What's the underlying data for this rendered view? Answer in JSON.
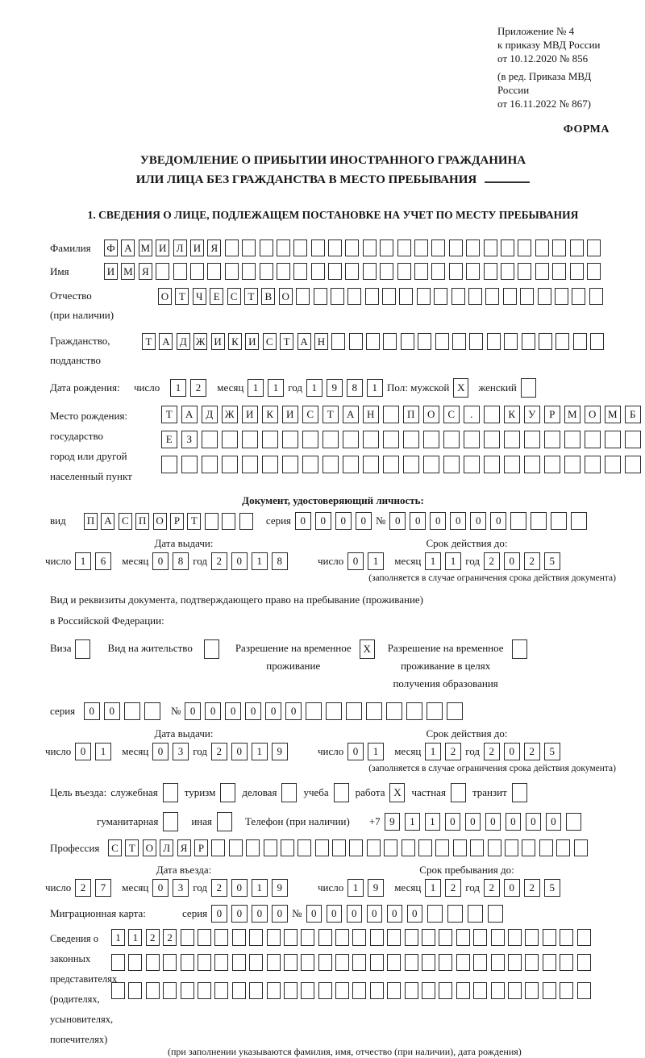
{
  "meta": {
    "appendix": [
      "Приложение № 4",
      "к приказу МВД России",
      "от 10.12.2020 № 856"
    ],
    "amendment": [
      "(в ред. Приказа МВД России",
      "от 16.11.2022 № 867)"
    ],
    "forma": "ФОРМА"
  },
  "title": {
    "line1": "УВЕДОМЛЕНИЕ О ПРИБЫТИИ ИНОСТРАННОГО ГРАЖДАНИНА",
    "line2": "ИЛИ ЛИЦА БЕЗ ГРАЖДАНСТВА В МЕСТО ПРЕБЫВАНИЯ"
  },
  "section1_title": "1. СВЕДЕНИЯ О ЛИЦЕ, ПОДЛЕЖАЩЕМ ПОСТАНОВКЕ НА УЧЕТ ПО МЕСТУ ПРЕБЫВАНИЯ",
  "date_labels": {
    "day": "число",
    "month": "месяц",
    "year": "год"
  },
  "surname": {
    "label": "Фамилия",
    "value": "ФАМИЛИЯ",
    "len": 29
  },
  "name": {
    "label": "Имя",
    "value": "ИМЯ",
    "len": 29
  },
  "patronymic": {
    "label1": "Отчество",
    "label2": "(при наличии)",
    "value": "ОТЧЕСТВО",
    "len": 26
  },
  "citizenship": {
    "label1": "Гражданство,",
    "label2": "подданство",
    "value": "ТАДЖИКИСТАН",
    "len": 27
  },
  "birthdate": {
    "label": "Дата рождения:",
    "day": {
      "value": "12",
      "len": 2
    },
    "month": {
      "value": "11",
      "len": 2
    },
    "year": {
      "value": "1981",
      "len": 4
    },
    "sex_label": "Пол: мужской",
    "male_mark": "X",
    "female_label": "женский",
    "female_mark": ""
  },
  "birthplace": {
    "label1": "Место рождения:",
    "label2": "государство",
    "label3": "город или другой",
    "label4": "населенный пункт",
    "row1": {
      "value": "ТАДЖИКИСТАН ПОС. КУРМОМБ",
      "len": 24
    },
    "row2": {
      "value": "ЕЗ",
      "len": 24
    },
    "row3": {
      "value": "",
      "len": 24
    }
  },
  "identity_doc": {
    "heading": "Документ, удостоверяющий личность:",
    "type_label": "вид",
    "type": {
      "value": "ПАСПОРТ",
      "len": 10
    },
    "series_label": "серия",
    "series": {
      "value": "0000",
      "len": 4
    },
    "number_label": "№",
    "number": {
      "value": "000000",
      "len": 10
    },
    "issue_label": "Дата выдачи:",
    "valid_label": "Срок действия до:",
    "issue": {
      "day": {
        "value": "16",
        "len": 2
      },
      "month": {
        "value": "08",
        "len": 2
      },
      "year": {
        "value": "2018",
        "len": 4
      }
    },
    "valid": {
      "day": {
        "value": "01",
        "len": 2
      },
      "month": {
        "value": "11",
        "len": 2
      },
      "year": {
        "value": "2025",
        "len": 4
      }
    },
    "footnote": "(заполняется в случае ограничения срока действия документа)"
  },
  "residence_doc": {
    "line1": "Вид и реквизиты документа, подтверждающего право на пребывание (проживание)",
    "line2": "в Российской Федерации:",
    "options": [
      {
        "lines": [
          "Виза"
        ],
        "mark": ""
      },
      {
        "lines": [
          "Вид на жительство"
        ],
        "mark": ""
      },
      {
        "lines": [
          "Разрешение на временное",
          "проживание"
        ],
        "mark": "X"
      },
      {
        "lines": [
          "Разрешение на временное",
          "проживание в целях",
          "получения образования"
        ],
        "mark": ""
      }
    ],
    "series_label": "серия",
    "series": {
      "value": "00",
      "len": 4
    },
    "number_label": "№",
    "number": {
      "value": "000000",
      "len": 14
    },
    "issue_label": "Дата выдачи:",
    "valid_label": "Срок действия до:",
    "issue": {
      "day": {
        "value": "01",
        "len": 2
      },
      "month": {
        "value": "03",
        "len": 2
      },
      "year": {
        "value": "2019",
        "len": 4
      }
    },
    "valid": {
      "day": {
        "value": "01",
        "len": 2
      },
      "month": {
        "value": "12",
        "len": 2
      },
      "year": {
        "value": "2025",
        "len": 4
      }
    },
    "footnote": "(заполняется в случае ограничения срока действия документа)"
  },
  "purpose": {
    "label": "Цель въезда:",
    "options": [
      {
        "label": "служебная",
        "mark": ""
      },
      {
        "label": "туризм",
        "mark": ""
      },
      {
        "label": "деловая",
        "mark": ""
      },
      {
        "label": "учеба",
        "mark": ""
      },
      {
        "label": "работа",
        "mark": "X"
      },
      {
        "label": "частная",
        "mark": ""
      },
      {
        "label": "транзит",
        "mark": ""
      },
      {
        "label": "гуманитарная",
        "mark": ""
      },
      {
        "label": "иная",
        "mark": ""
      }
    ],
    "phone_label": "Телефон (при наличии)",
    "phone_prefix": "+7",
    "phone": {
      "value": "911000000",
      "len": 10
    }
  },
  "profession": {
    "label": "Профессия",
    "value": "СТОЛЯР",
    "len": 28
  },
  "entry": {
    "entry_label": "Дата въезда:",
    "stay_label": "Срок пребывания до:",
    "entry_date": {
      "day": {
        "value": "27",
        "len": 2
      },
      "month": {
        "value": "03",
        "len": 2
      },
      "year": {
        "value": "2019",
        "len": 4
      }
    },
    "stay_date": {
      "day": {
        "value": "19",
        "len": 2
      },
      "month": {
        "value": "12",
        "len": 2
      },
      "year": {
        "value": "2025",
        "len": 4
      }
    }
  },
  "migration_card": {
    "label": "Миграционная карта:",
    "series_label": "серия",
    "series": {
      "value": "0000",
      "len": 4
    },
    "number_label": "№",
    "number": {
      "value": "000000",
      "len": 10
    }
  },
  "representatives": {
    "label_lines": [
      "Сведения о",
      "законных",
      "представителях",
      "(родителях,",
      "усыновителях,",
      "попечителях)"
    ],
    "row1": {
      "value": "1122",
      "len": 28
    },
    "row2": {
      "value": "",
      "len": 28
    },
    "row3": {
      "value": "",
      "len": 28
    },
    "caption": "(при заполнении указываются фамилия, имя, отчество (при наличии), дата рождения)"
  }
}
